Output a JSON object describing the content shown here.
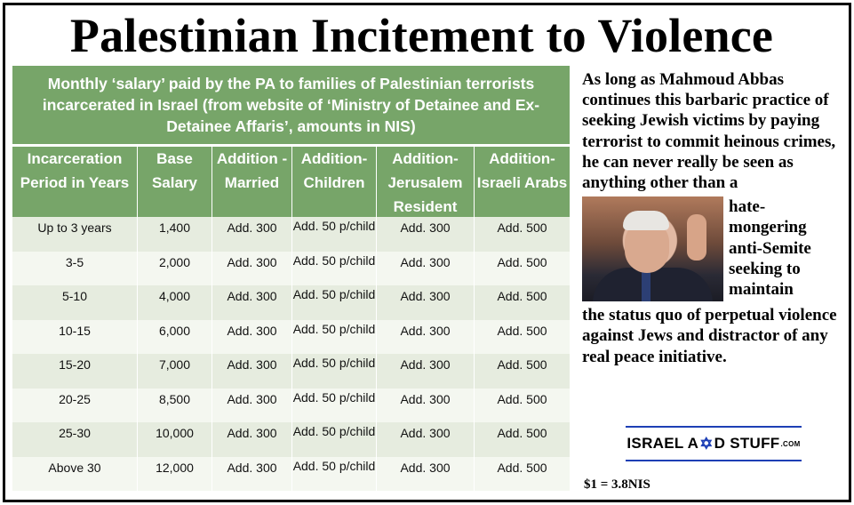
{
  "headline": "Palestinian Incitement to Violence",
  "table": {
    "caption": "Monthly ‘salary’ paid by the PA to families of Palestinian terrorists incarcerated in Israel (from website of ‘Ministry of Detainee and Ex-Detainee Affaris’, amounts in NIS)",
    "headers": [
      "Incarceration Period in Years",
      "Base Salary",
      "Addition - Married",
      "Addition- Children",
      "Addition- Jerusalem Resident",
      "Addition- Israeli Arabs"
    ],
    "rows": [
      [
        "Up to 3 years",
        "1,400",
        "Add. 300",
        "Add. 50 p/child",
        "Add. 300",
        "Add. 500"
      ],
      [
        "3-5",
        "2,000",
        "Add. 300",
        "Add. 50 p/child",
        "Add. 300",
        "Add. 500"
      ],
      [
        "5-10",
        "4,000",
        "Add. 300",
        "Add. 50 p/child",
        "Add. 300",
        "Add. 500"
      ],
      [
        "10-15",
        "6,000",
        "Add. 300",
        "Add. 50 p/child",
        "Add. 300",
        "Add. 500"
      ],
      [
        "15-20",
        "7,000",
        "Add. 300",
        "Add. 50 p/child",
        "Add. 300",
        "Add. 500"
      ],
      [
        "20-25",
        "8,500",
        "Add. 300",
        "Add. 50 p/child",
        "Add. 300",
        "Add. 500"
      ],
      [
        "25-30",
        "10,000",
        "Add. 300",
        "Add. 50 p/child",
        "Add. 300",
        "Add. 500"
      ],
      [
        "Above 30",
        "12,000",
        "Add. 300",
        "Add. 50 p/child",
        "Add. 300",
        "Add. 500"
      ]
    ]
  },
  "commentary": {
    "top": "As long as Mahmoud Abbas continues this barbaric practice of seeking Jewish victims by paying terrorist to commit heinous crimes, he can never really be seen as anything other than a",
    "wrapped": "hate-mongering anti-Semite seeking to maintain",
    "bottom": "the status quo of perpetual violence against Jews and distractor of any real peace initiative."
  },
  "logo": {
    "part1": "ISRAEL A",
    "star": "✡",
    "part2": "D STUFF",
    "suffix": ".COM"
  },
  "exchange_rate": "$1 = 3.8NIS",
  "colors": {
    "table_green": "#77a569",
    "row_light": "#e6ecdf",
    "logo_blue": "#1d3fb5"
  }
}
